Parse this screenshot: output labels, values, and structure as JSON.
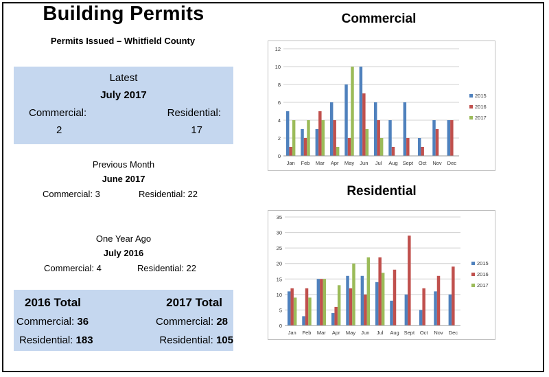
{
  "header": {
    "title": "Building Permits",
    "subtitle": "Permits Issued – Whitfield County"
  },
  "latest": {
    "label": "Latest",
    "month": "July 2017",
    "commercial_label": "Commercial:",
    "residential_label": "Residential:",
    "commercial_value": "2",
    "residential_value": "17"
  },
  "previous": {
    "label": "Previous Month",
    "month": "June 2017",
    "commercial": "Commercial: 3",
    "residential": "Residential: 22"
  },
  "year_ago": {
    "label": "One Year Ago",
    "month": "July 2016",
    "commercial": "Commercial: 4",
    "residential": "Residential: 22"
  },
  "totals": {
    "h2016": "2016 Total",
    "h2017": "2017 Total",
    "commercial_label": "Commercial: ",
    "residential_label": "Residential: ",
    "c2016": "36",
    "r2016": "183",
    "c2017": "28",
    "r2017": "105"
  },
  "colors": {
    "s2015": "#4f81bd",
    "s2016": "#c0504d",
    "s2017": "#9bbb59",
    "panel": "#c5d7ef"
  },
  "chart_data": [
    {
      "type": "bar",
      "title": "Commercial",
      "categories": [
        "Jan",
        "Feb",
        "Mar",
        "Apr",
        "May",
        "Jun",
        "Jul",
        "Aug",
        "Sept",
        "Oct",
        "Nov",
        "Dec"
      ],
      "ylim": [
        0,
        12
      ],
      "yticks": [
        0,
        2,
        4,
        6,
        8,
        10,
        12
      ],
      "grid": true,
      "legend": "right",
      "series": [
        {
          "name": "2015",
          "values": [
            5,
            3,
            3,
            6,
            8,
            10,
            6,
            4,
            6,
            2,
            4,
            4
          ]
        },
        {
          "name": "2016",
          "values": [
            1,
            2,
            5,
            4,
            2,
            7,
            4,
            1,
            2,
            1,
            3,
            4
          ]
        },
        {
          "name": "2017",
          "values": [
            4,
            4,
            4,
            1,
            10,
            3,
            2,
            null,
            null,
            null,
            null,
            null
          ]
        }
      ]
    },
    {
      "type": "bar",
      "title": "Residential",
      "categories": [
        "Jan",
        "Feb",
        "Mar",
        "Apr",
        "May",
        "Jun",
        "Jul",
        "Aug",
        "Sept",
        "Oct",
        "Nov",
        "Dec"
      ],
      "ylim": [
        0,
        35
      ],
      "yticks": [
        0,
        5,
        10,
        15,
        20,
        25,
        30,
        35
      ],
      "grid": true,
      "legend": "right",
      "series": [
        {
          "name": "2015",
          "values": [
            11,
            3,
            15,
            4,
            16,
            16,
            14,
            8,
            10,
            5,
            11,
            10
          ]
        },
        {
          "name": "2016",
          "values": [
            12,
            12,
            15,
            6,
            12,
            10,
            22,
            18,
            29,
            12,
            16,
            19
          ]
        },
        {
          "name": "2017",
          "values": [
            9,
            9,
            15,
            13,
            20,
            22,
            17,
            null,
            null,
            null,
            null,
            null
          ]
        }
      ]
    }
  ]
}
